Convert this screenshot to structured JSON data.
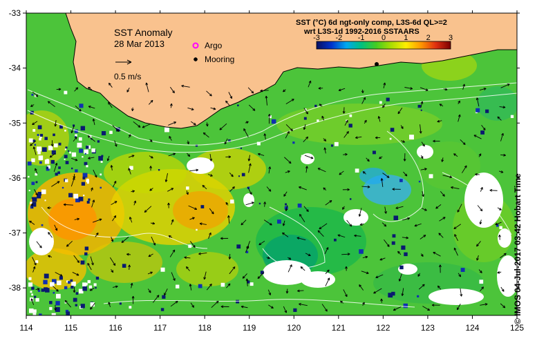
{
  "title": "SST Anomaly",
  "date": "28 Mar 2013",
  "legend": {
    "argo": "Argo",
    "mooring": "Mooring",
    "argo_color": "#ff00ff",
    "mooring_color": "#000000"
  },
  "vector_scale": {
    "label": "0.5 m/s"
  },
  "colorbar": {
    "title_line1": "SST (°C) 6d ngt-only comp, L3S-6d QL>=2",
    "title_line2": "wrt L3S-1d 1992-2016 SSTAARS",
    "ticks": [
      "-3",
      "-2",
      "-1",
      "0",
      "1",
      "2",
      "3"
    ],
    "min": -3,
    "max": 3,
    "colors": [
      "#0a1060",
      "#0033cc",
      "#00a8f0",
      "#00c080",
      "#44cc22",
      "#aadd00",
      "#ffee00",
      "#ff9900",
      "#e03010",
      "#7a0000"
    ]
  },
  "axes": {
    "x_ticks": [
      "114",
      "115",
      "116",
      "117",
      "118",
      "119",
      "120",
      "121",
      "122",
      "123",
      "124",
      "125"
    ],
    "y_ticks": [
      "-33",
      "-34",
      "-35",
      "-36",
      "-37",
      "-38"
    ],
    "lon_range": [
      114,
      125
    ],
    "lat_range": [
      -38.5,
      -33
    ]
  },
  "credit": "© IMOS 04-Jul-2017 03:42 Hobart Time",
  "colors": {
    "land": "#f9c28e",
    "no_data": "#ffffff",
    "frame": "#000000"
  }
}
